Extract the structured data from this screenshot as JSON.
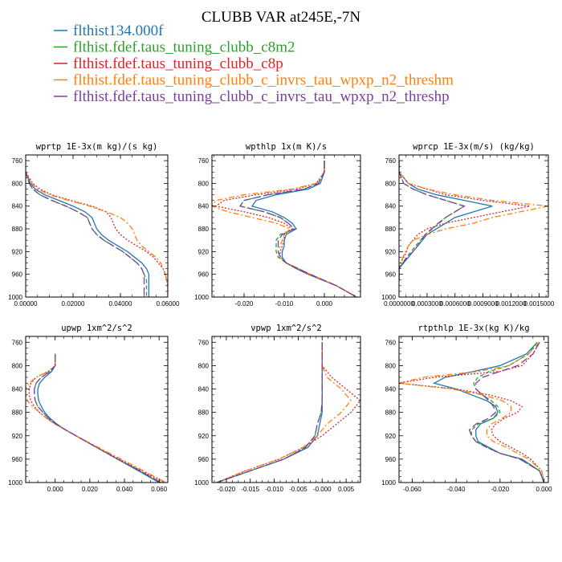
{
  "figure_title": "CLUBB VAR at245E,-7N",
  "legend": [
    {
      "label": "flthist134.000f",
      "color": "#1f77b4",
      "dash": "solid"
    },
    {
      "label": "flthist.fdef.taus_tuning_clubb_c8m2",
      "color": "#2ca02c",
      "dash": "dashed"
    },
    {
      "label": "flthist.fdef.taus_tuning_clubb_c8p",
      "color": "#d62728",
      "dash": "dotted"
    },
    {
      "label": "flthist.fdef.taus_tuning_clubb_c_invrs_tau_wpxp_n2_threshm",
      "color": "#ff7f0e",
      "dash": "dashdot"
    },
    {
      "label": "flthist.fdef.taus_tuning_clubb_c_invrs_tau_wpxp_n2_threshp",
      "color": "#7b3fa0",
      "dash": "longdash"
    }
  ],
  "chart_data": [
    {
      "type": "line",
      "title": "wprtp  1E-3x(m kg)/(s kg)",
      "xlim": [
        0,
        0.06
      ],
      "ylim": [
        1000,
        750
      ],
      "xticks": [
        0,
        0.02,
        0.04,
        0.06
      ],
      "xtick_labels": [
        "0.00000",
        "0.02000",
        "0.04000",
        "0.06000"
      ],
      "yticks": [
        760,
        800,
        840,
        880,
        920,
        960,
        1000
      ],
      "y": [
        760,
        780,
        800,
        810,
        820,
        830,
        840,
        850,
        860,
        870,
        880,
        890,
        900,
        910,
        920,
        930,
        940,
        950,
        960,
        970,
        980,
        1000
      ],
      "series": [
        {
          "values": [
            -0.001,
            0.0,
            0.002,
            0.004,
            0.008,
            0.014,
            0.02,
            0.025,
            0.028,
            0.029,
            0.03,
            0.032,
            0.035,
            0.039,
            0.043,
            0.046,
            0.049,
            0.051,
            0.052,
            0.052,
            0.052,
            0.052
          ]
        },
        {
          "values": [
            -0.001,
            0.0,
            0.0015,
            0.003,
            0.006,
            0.011,
            0.017,
            0.022,
            0.026,
            0.027,
            0.028,
            0.03,
            0.033,
            0.037,
            0.041,
            0.044,
            0.047,
            0.049,
            0.05,
            0.051,
            0.051,
            0.051
          ]
        },
        {
          "values": [
            -0.001,
            0.0,
            0.003,
            0.006,
            0.011,
            0.019,
            0.028,
            0.034,
            0.036,
            0.037,
            0.038,
            0.04,
            0.043,
            0.047,
            0.051,
            0.054,
            0.056,
            0.058,
            0.059,
            0.0595,
            0.06,
            0.06
          ]
        },
        {
          "values": [
            -0.001,
            0.0,
            0.0025,
            0.005,
            0.01,
            0.018,
            0.027,
            0.034,
            0.04,
            0.043,
            0.045,
            0.046,
            0.047,
            0.049,
            0.052,
            0.055,
            0.057,
            0.058,
            0.059,
            0.0595,
            0.06,
            0.06
          ]
        },
        {
          "values": [
            -0.001,
            0.0,
            0.0015,
            0.003,
            0.006,
            0.011,
            0.017,
            0.022,
            0.026,
            0.027,
            0.028,
            0.03,
            0.033,
            0.037,
            0.041,
            0.044,
            0.047,
            0.049,
            0.05,
            0.05,
            0.05,
            0.05
          ]
        }
      ]
    },
    {
      "type": "line",
      "title": "wpthlp  1x(m K)/s",
      "xlim": [
        -0.028,
        0.009
      ],
      "ylim": [
        1000,
        750
      ],
      "xticks": [
        -0.02,
        -0.01,
        0.0
      ],
      "xtick_labels": [
        "-0.020",
        "-0.010",
        "0.000"
      ],
      "yticks": [
        760,
        800,
        840,
        880,
        920,
        960,
        1000
      ],
      "y": [
        760,
        780,
        800,
        810,
        820,
        830,
        840,
        850,
        860,
        870,
        880,
        890,
        900,
        910,
        920,
        930,
        940,
        950,
        960,
        980,
        1000
      ],
      "series": [
        {
          "values": [
            0.0,
            0.0,
            -0.001,
            -0.004,
            -0.012,
            -0.017,
            -0.018,
            -0.013,
            -0.01,
            -0.008,
            -0.007,
            -0.0095,
            -0.01,
            -0.01,
            -0.0105,
            -0.0105,
            -0.0095,
            -0.007,
            -0.004,
            0.003,
            0.008
          ]
        },
        {
          "values": [
            0.0,
            0.0,
            -0.0015,
            -0.005,
            -0.014,
            -0.02,
            -0.021,
            -0.015,
            -0.011,
            -0.009,
            -0.0075,
            -0.011,
            -0.012,
            -0.012,
            -0.012,
            -0.0115,
            -0.0095,
            -0.0065,
            -0.0035,
            0.003,
            0.008
          ]
        },
        {
          "values": [
            0.0,
            0.0,
            -0.002,
            -0.007,
            -0.017,
            -0.025,
            -0.027,
            -0.02,
            -0.014,
            -0.01,
            -0.008,
            -0.01,
            -0.01,
            -0.0105,
            -0.011,
            -0.011,
            -0.0095,
            -0.007,
            -0.004,
            0.003,
            0.008
          ]
        },
        {
          "values": [
            0.0,
            0.0,
            -0.002,
            -0.008,
            -0.02,
            -0.027,
            -0.028,
            -0.024,
            -0.018,
            -0.012,
            -0.0085,
            -0.01,
            -0.0105,
            -0.011,
            -0.0115,
            -0.011,
            -0.0095,
            -0.0065,
            -0.0035,
            0.003,
            0.008
          ]
        },
        {
          "values": [
            0.0,
            0.0,
            -0.0015,
            -0.005,
            -0.014,
            -0.02,
            -0.021,
            -0.015,
            -0.011,
            -0.009,
            -0.0075,
            -0.0105,
            -0.0115,
            -0.0115,
            -0.0115,
            -0.011,
            -0.0095,
            -0.0065,
            -0.0035,
            0.003,
            0.008
          ]
        }
      ]
    },
    {
      "type": "line",
      "title": "wprcp  1E-3x(m/s) (kg/kg)",
      "xlim": [
        0,
        0.0016
      ],
      "ylim": [
        1000,
        750
      ],
      "xticks": [
        0,
        0.0003,
        0.0006,
        0.0009,
        0.0012,
        0.0015
      ],
      "xtick_labels": [
        "0.0000000",
        "0.0003000",
        "0.0006000",
        "0.0009000",
        "0.0012000",
        "0.0015000"
      ],
      "yticks": [
        760,
        800,
        840,
        880,
        920,
        960,
        1000
      ],
      "y": [
        760,
        780,
        800,
        810,
        820,
        830,
        840,
        850,
        860,
        870,
        880,
        890,
        900,
        910,
        920,
        930,
        940,
        950,
        960,
        970
      ],
      "series": [
        {
          "values": [
            0.0,
            0.0,
            0.0001,
            0.0002,
            0.0004,
            0.0007,
            0.001,
            0.0008,
            0.0006,
            0.0005,
            0.0004,
            0.0003,
            0.00025,
            0.0002,
            0.00015,
            0.0001,
            5e-05,
            0.0,
            0.0,
            0.0
          ]
        },
        {
          "values": [
            0.0,
            0.0,
            5e-05,
            0.00015,
            0.0003,
            0.0005,
            0.0007,
            0.0006,
            0.0005,
            0.00043,
            0.00036,
            0.00028,
            0.00023,
            0.00018,
            0.00013,
            8e-05,
            4e-05,
            0.0,
            0.0,
            0.0
          ]
        },
        {
          "values": [
            0.0,
            0.0,
            0.0001,
            0.0003,
            0.0005,
            0.0009,
            0.0014,
            0.0011,
            0.0008,
            0.0005,
            0.0003,
            0.0002,
            0.00015,
            0.0001,
            8e-05,
            5e-05,
            2e-05,
            0.0,
            0.0,
            0.0
          ]
        },
        {
          "values": [
            0.0,
            0.0,
            0.0001,
            0.0003,
            0.0006,
            0.001,
            0.0016,
            0.0013,
            0.001,
            0.0008,
            0.0005,
            0.0003,
            0.00015,
            0.0001,
            7e-05,
            4e-05,
            2e-05,
            0.0,
            0.0,
            0.0
          ]
        },
        {
          "values": [
            0.0,
            0.0,
            5e-05,
            0.00015,
            0.0003,
            0.0005,
            0.0007,
            0.0006,
            0.0005,
            0.00042,
            0.00035,
            0.00028,
            0.00024,
            0.0002,
            0.00015,
            9e-05,
            4e-05,
            0.0,
            0.0,
            0.0
          ]
        }
      ]
    },
    {
      "type": "line",
      "title": "upwp  1xm^2/s^2",
      "xlim": [
        -0.017,
        0.065
      ],
      "ylim": [
        1000,
        750
      ],
      "xticks": [
        0,
        0.02,
        0.04,
        0.06
      ],
      "xtick_labels": [
        "0.000",
        "0.020",
        "0.040",
        "0.060"
      ],
      "yticks": [
        760,
        800,
        840,
        880,
        920,
        960,
        1000
      ],
      "y": [
        780,
        800,
        810,
        820,
        830,
        840,
        850,
        860,
        870,
        880,
        890,
        900,
        910,
        920,
        940,
        960,
        980,
        1000
      ],
      "series": [
        {
          "values": [
            0.0,
            0.0,
            -0.002,
            -0.006,
            -0.009,
            -0.01,
            -0.01,
            -0.0095,
            -0.008,
            -0.006,
            -0.003,
            0.001,
            0.006,
            0.012,
            0.024,
            0.036,
            0.048,
            0.06
          ]
        },
        {
          "values": [
            0.0,
            0.0,
            -0.003,
            -0.008,
            -0.011,
            -0.012,
            -0.012,
            -0.0115,
            -0.01,
            -0.007,
            -0.004,
            0.0005,
            0.006,
            0.012,
            0.024,
            0.036,
            0.049,
            0.061
          ]
        },
        {
          "values": [
            0.0,
            0.0,
            -0.004,
            -0.011,
            -0.014,
            -0.015,
            -0.015,
            -0.014,
            -0.012,
            -0.009,
            -0.005,
            0.0,
            0.006,
            0.012,
            0.024,
            0.037,
            0.05,
            0.063
          ]
        },
        {
          "values": [
            0.0,
            0.0,
            -0.004,
            -0.011,
            -0.015,
            -0.017,
            -0.017,
            -0.016,
            -0.013,
            -0.009,
            -0.005,
            0.0,
            0.006,
            0.012,
            0.025,
            0.038,
            0.051,
            0.064
          ]
        },
        {
          "values": [
            0.0,
            0.0,
            -0.003,
            -0.008,
            -0.011,
            -0.012,
            -0.012,
            -0.0115,
            -0.01,
            -0.007,
            -0.004,
            0.0005,
            0.006,
            0.012,
            0.024,
            0.036,
            0.049,
            0.061
          ]
        }
      ]
    },
    {
      "type": "line",
      "title": "vpwp  1xm^2/s^2",
      "xlim": [
        -0.023,
        0.008
      ],
      "ylim": [
        1000,
        750
      ],
      "xticks": [
        -0.02,
        -0.015,
        -0.01,
        -0.005,
        0.0,
        0.005
      ],
      "xtick_labels": [
        "-0.020",
        "-0.015",
        "-0.010",
        "-0.005",
        "-0.000",
        "0.005"
      ],
      "yticks": [
        760,
        800,
        840,
        880,
        920,
        960,
        1000
      ],
      "y": [
        760,
        780,
        800,
        820,
        840,
        860,
        880,
        900,
        920,
        940,
        960,
        980,
        1000
      ],
      "series": [
        {
          "values": [
            0.0,
            0.0,
            0.0,
            0.0,
            0.0,
            0.0,
            0.0,
            -0.0005,
            -0.001,
            -0.003,
            -0.008,
            -0.015,
            -0.022
          ]
        },
        {
          "values": [
            0.0,
            0.0,
            0.0,
            0.0,
            0.0,
            0.0,
            -0.0002,
            -0.001,
            -0.0015,
            -0.0035,
            -0.008,
            -0.015,
            -0.022
          ]
        },
        {
          "values": [
            0.0,
            0.0,
            0.0,
            0.002,
            0.005,
            0.008,
            0.006,
            0.003,
            0.0,
            -0.004,
            -0.009,
            -0.016,
            -0.022
          ]
        },
        {
          "values": [
            0.0,
            0.0,
            0.0,
            0.001,
            0.004,
            0.006,
            0.004,
            0.001,
            -0.001,
            -0.004,
            -0.009,
            -0.016,
            -0.022
          ]
        },
        {
          "values": [
            0.0,
            0.0,
            0.0,
            0.0,
            0.0,
            0.0,
            -0.0002,
            -0.001,
            -0.0015,
            -0.0035,
            -0.008,
            -0.015,
            -0.022
          ]
        }
      ]
    },
    {
      "type": "line",
      "title": "rtpthlp  1E-3x(kg K)/kg",
      "xlim": [
        -0.066,
        0.002
      ],
      "ylim": [
        1000,
        750
      ],
      "xticks": [
        -0.06,
        -0.04,
        -0.02,
        0.0
      ],
      "xtick_labels": [
        "-0.060",
        "-0.040",
        "-0.020",
        "0.000"
      ],
      "yticks": [
        760,
        800,
        840,
        880,
        920,
        960,
        1000
      ],
      "y": [
        760,
        780,
        800,
        810,
        820,
        830,
        840,
        850,
        860,
        870,
        880,
        890,
        900,
        910,
        920,
        930,
        940,
        950,
        960,
        980,
        1000
      ],
      "series": [
        {
          "values": [
            -0.003,
            -0.008,
            -0.02,
            -0.032,
            -0.045,
            -0.05,
            -0.04,
            -0.033,
            -0.026,
            -0.022,
            -0.021,
            -0.023,
            -0.029,
            -0.031,
            -0.031,
            -0.03,
            -0.025,
            -0.02,
            -0.01,
            -0.002,
            0.0
          ]
        },
        {
          "values": [
            -0.003,
            -0.007,
            -0.016,
            -0.025,
            -0.03,
            -0.032,
            -0.031,
            -0.028,
            -0.024,
            -0.021,
            -0.02,
            -0.023,
            -0.03,
            -0.033,
            -0.033,
            -0.031,
            -0.026,
            -0.02,
            -0.011,
            -0.002,
            0.0
          ]
        },
        {
          "values": [
            -0.002,
            -0.005,
            -0.01,
            -0.02,
            -0.05,
            -0.066,
            -0.04,
            -0.025,
            -0.015,
            -0.01,
            -0.012,
            -0.018,
            -0.022,
            -0.024,
            -0.023,
            -0.02,
            -0.015,
            -0.01,
            -0.006,
            -0.001,
            0.0
          ]
        },
        {
          "values": [
            -0.002,
            -0.007,
            -0.016,
            -0.03,
            -0.055,
            -0.066,
            -0.042,
            -0.028,
            -0.019,
            -0.015,
            -0.015,
            -0.019,
            -0.024,
            -0.026,
            -0.026,
            -0.023,
            -0.017,
            -0.012,
            -0.007,
            -0.001,
            0.0
          ]
        },
        {
          "values": [
            -0.002,
            -0.005,
            -0.012,
            -0.02,
            -0.028,
            -0.031,
            -0.031,
            -0.028,
            -0.025,
            -0.023,
            -0.022,
            -0.025,
            -0.031,
            -0.034,
            -0.033,
            -0.031,
            -0.026,
            -0.02,
            -0.011,
            -0.002,
            0.0
          ]
        }
      ]
    }
  ]
}
